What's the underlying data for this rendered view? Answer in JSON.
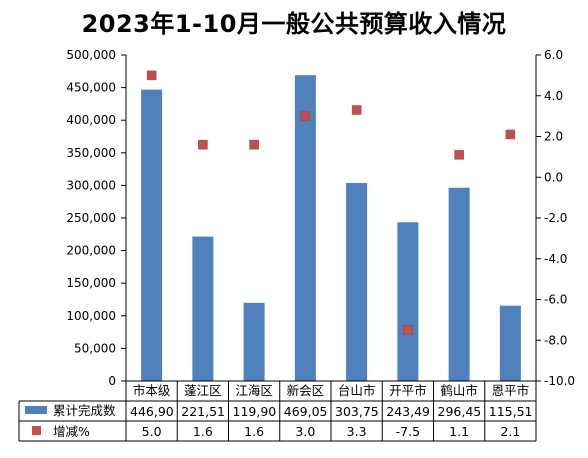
{
  "title": "2023年1-10月一般公共预算收入情况",
  "chart_data": {
    "type": "bar",
    "title": "2023年1-10月一般公共预算收入情况",
    "categories": [
      "市本级",
      "蓬江区",
      "江海区",
      "新会区",
      "台山市",
      "开平市",
      "鹤山市",
      "恩平市"
    ],
    "series": [
      {
        "name": "累计完成数",
        "type": "bar",
        "axis": "left",
        "color": "#4F81BD",
        "values": [
          446900,
          221510,
          119900,
          469050,
          303750,
          243490,
          296450,
          115510
        ],
        "table_labels": [
          "446,90",
          "221,51",
          "119,90",
          "469,05",
          "303,75",
          "243,49",
          "296,45",
          "115,51"
        ]
      },
      {
        "name": "增减%",
        "type": "scatter",
        "axis": "right",
        "color": "#C0504D",
        "values": [
          5.0,
          1.6,
          1.6,
          3.0,
          3.3,
          -7.5,
          1.1,
          2.1
        ],
        "table_labels": [
          "5.0",
          "1.6",
          "1.6",
          "3.0",
          "3.3",
          "-7.5",
          "1.1",
          "2.1"
        ]
      }
    ],
    "y_left": {
      "lim": [
        0,
        500000
      ],
      "ticks": [
        "0",
        "50,000",
        "100,000",
        "150,000",
        "200,000",
        "250,000",
        "300,000",
        "350,000",
        "400,000",
        "450,000",
        "500,000"
      ]
    },
    "y_right": {
      "lim": [
        -10,
        6
      ],
      "ticks": [
        "-10.0",
        "-8.0",
        "-6.0",
        "-4.0",
        "-2.0",
        "0.0",
        "2.0",
        "4.0",
        "6.0"
      ]
    },
    "grid": false,
    "legend": "data-table-below"
  }
}
